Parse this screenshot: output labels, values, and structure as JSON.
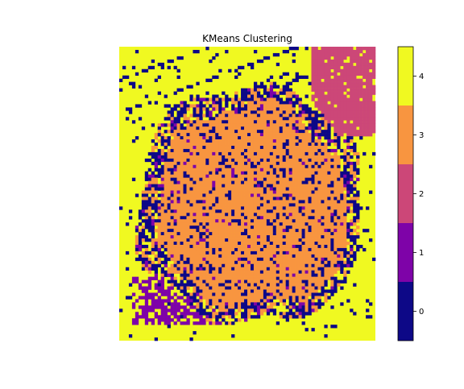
{
  "chart_data": {
    "type": "heatmap",
    "title": "KMeans Clustering",
    "xlabel": "",
    "ylabel": "",
    "axes_visible": false,
    "colormap": "plasma",
    "clusters": [
      0,
      1,
      2,
      3,
      4
    ],
    "colorbar": {
      "ticks": [
        0,
        1,
        2,
        3,
        4
      ],
      "tick_labels": [
        "0",
        "1",
        "2",
        "3",
        "4"
      ],
      "range": [
        -0.5,
        4.5
      ],
      "colors": [
        "#0d0887",
        "#7e03a8",
        "#cc4778",
        "#f89540",
        "#f0f921"
      ]
    },
    "grid_resolution": [
      80,
      92
    ],
    "background_cluster": 4,
    "foreground_cluster": 3,
    "corner_cluster": 2,
    "lower_left_cluster": 1,
    "edge_noise_cluster": 0
  }
}
